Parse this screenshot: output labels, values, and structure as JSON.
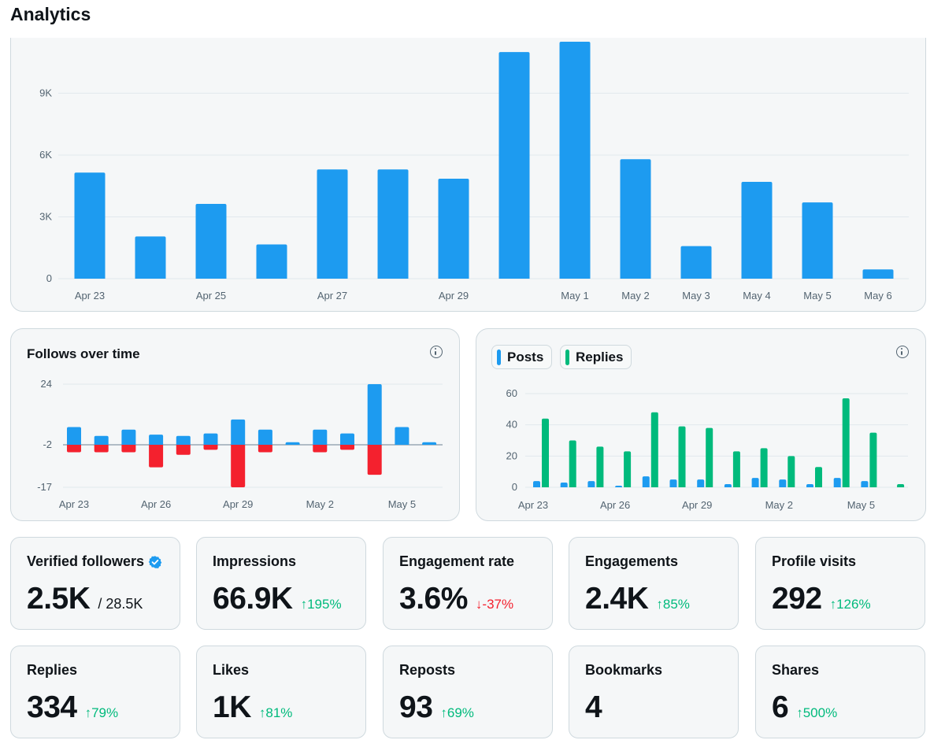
{
  "header": {
    "title": "Analytics"
  },
  "impressions_chart": {
    "chart_data": {
      "type": "bar",
      "categories": [
        "Apr 23",
        "Apr 24",
        "Apr 25",
        "Apr 26",
        "Apr 27",
        "Apr 28",
        "Apr 29",
        "Apr 30",
        "May 1",
        "May 2",
        "May 3",
        "May 4",
        "May 5",
        "May 6"
      ],
      "tick_labels": [
        "Apr 23",
        "",
        "Apr 25",
        "",
        "Apr 27",
        "",
        "Apr 29",
        "",
        "May 1",
        "May 2",
        "May 3",
        "May 4",
        "May 5",
        "May 6"
      ],
      "values": [
        5150,
        2050,
        3630,
        1660,
        5300,
        5300,
        4850,
        11000,
        11500,
        5800,
        1580,
        4700,
        3700,
        450
      ],
      "y_ticks": [
        0,
        3000,
        6000,
        9000
      ],
      "y_tick_labels": [
        "0",
        "3K",
        "6K",
        "9K"
      ],
      "ylim": [
        0,
        11500
      ],
      "grid": true,
      "color": "#1d9bf0"
    }
  },
  "follows_chart": {
    "title": "Follows over time",
    "chart_data": {
      "type": "bar",
      "categories": [
        "Apr 23",
        "Apr 24",
        "Apr 25",
        "Apr 26",
        "Apr 27",
        "Apr 28",
        "Apr 29",
        "Apr 30",
        "May 1",
        "May 2",
        "May 3",
        "May 4",
        "May 5",
        "May 6"
      ],
      "tick_labels": [
        "Apr 23",
        "",
        "",
        "Apr 26",
        "",
        "",
        "Apr 29",
        "",
        "",
        "May 2",
        "",
        "",
        "May 5",
        ""
      ],
      "series": [
        {
          "values": [
            7,
            3.5,
            6,
            4,
            3.5,
            4.5,
            10,
            6,
            1,
            6,
            4.5,
            24,
            7,
            1
          ],
          "color": "#1d9bf0"
        },
        {
          "values": [
            -3,
            -3,
            -3,
            -9,
            -4,
            -2,
            -17,
            -3,
            0,
            -3,
            -2,
            -12,
            0,
            0
          ],
          "color": "#f4212e"
        }
      ],
      "y_ticks": [
        24,
        -2,
        -17
      ],
      "y_tick_labels": [
        "24",
        "-2",
        "-17"
      ],
      "ylim": [
        -17,
        24
      ],
      "grid": true
    }
  },
  "posts_replies_chart": {
    "chart_data": {
      "type": "bar",
      "categories": [
        "Apr 23",
        "Apr 24",
        "Apr 25",
        "Apr 26",
        "Apr 27",
        "Apr 28",
        "Apr 29",
        "Apr 30",
        "May 1",
        "May 2",
        "May 3",
        "May 4",
        "May 5",
        "May 6"
      ],
      "tick_labels": [
        "Apr 23",
        "",
        "",
        "Apr 26",
        "",
        "",
        "Apr 29",
        "",
        "",
        "May 2",
        "",
        "",
        "May 5",
        ""
      ],
      "series": [
        {
          "name": "Posts",
          "values": [
            4,
            3,
            4,
            1,
            7,
            5,
            5,
            2,
            6,
            5,
            2,
            6,
            4,
            0
          ],
          "color": "#1d9bf0"
        },
        {
          "name": "Replies",
          "values": [
            44,
            30,
            26,
            23,
            48,
            39,
            38,
            23,
            25,
            20,
            13,
            57,
            35,
            2
          ],
          "color": "#00ba7c"
        }
      ],
      "y_ticks": [
        0,
        20,
        40,
        60
      ],
      "y_tick_labels": [
        "0",
        "20",
        "40",
        "60"
      ],
      "ylim": [
        0,
        60
      ],
      "grid": true,
      "legend": "top-left"
    }
  },
  "metrics": [
    {
      "label": "Verified followers",
      "value": "2.5K",
      "sub": "/ 28.5K",
      "change": "",
      "direction": "none",
      "verified": true
    },
    {
      "label": "Impressions",
      "value": "66.9K",
      "sub": "",
      "change": "195%",
      "direction": "up"
    },
    {
      "label": "Engagement rate",
      "value": "3.6%",
      "sub": "",
      "change": "-37%",
      "direction": "down"
    },
    {
      "label": "Engagements",
      "value": "2.4K",
      "sub": "",
      "change": "85%",
      "direction": "up"
    },
    {
      "label": "Profile visits",
      "value": "292",
      "sub": "",
      "change": "126%",
      "direction": "up"
    },
    {
      "label": "Replies",
      "value": "334",
      "sub": "",
      "change": "79%",
      "direction": "up"
    },
    {
      "label": "Likes",
      "value": "1K",
      "sub": "",
      "change": "81%",
      "direction": "up"
    },
    {
      "label": "Reposts",
      "value": "93",
      "sub": "",
      "change": "69%",
      "direction": "up"
    },
    {
      "label": "Bookmarks",
      "value": "4",
      "sub": "",
      "change": "",
      "direction": "none"
    },
    {
      "label": "Shares",
      "value": "6",
      "sub": "",
      "change": "500%",
      "direction": "up"
    }
  ],
  "icons": {
    "info": "info-icon",
    "verified": "verified-badge-icon",
    "up": "arrow-up-icon",
    "down": "arrow-down-icon"
  },
  "colors": {
    "blue": "#1d9bf0",
    "green": "#00ba7c",
    "red": "#f4212e"
  }
}
